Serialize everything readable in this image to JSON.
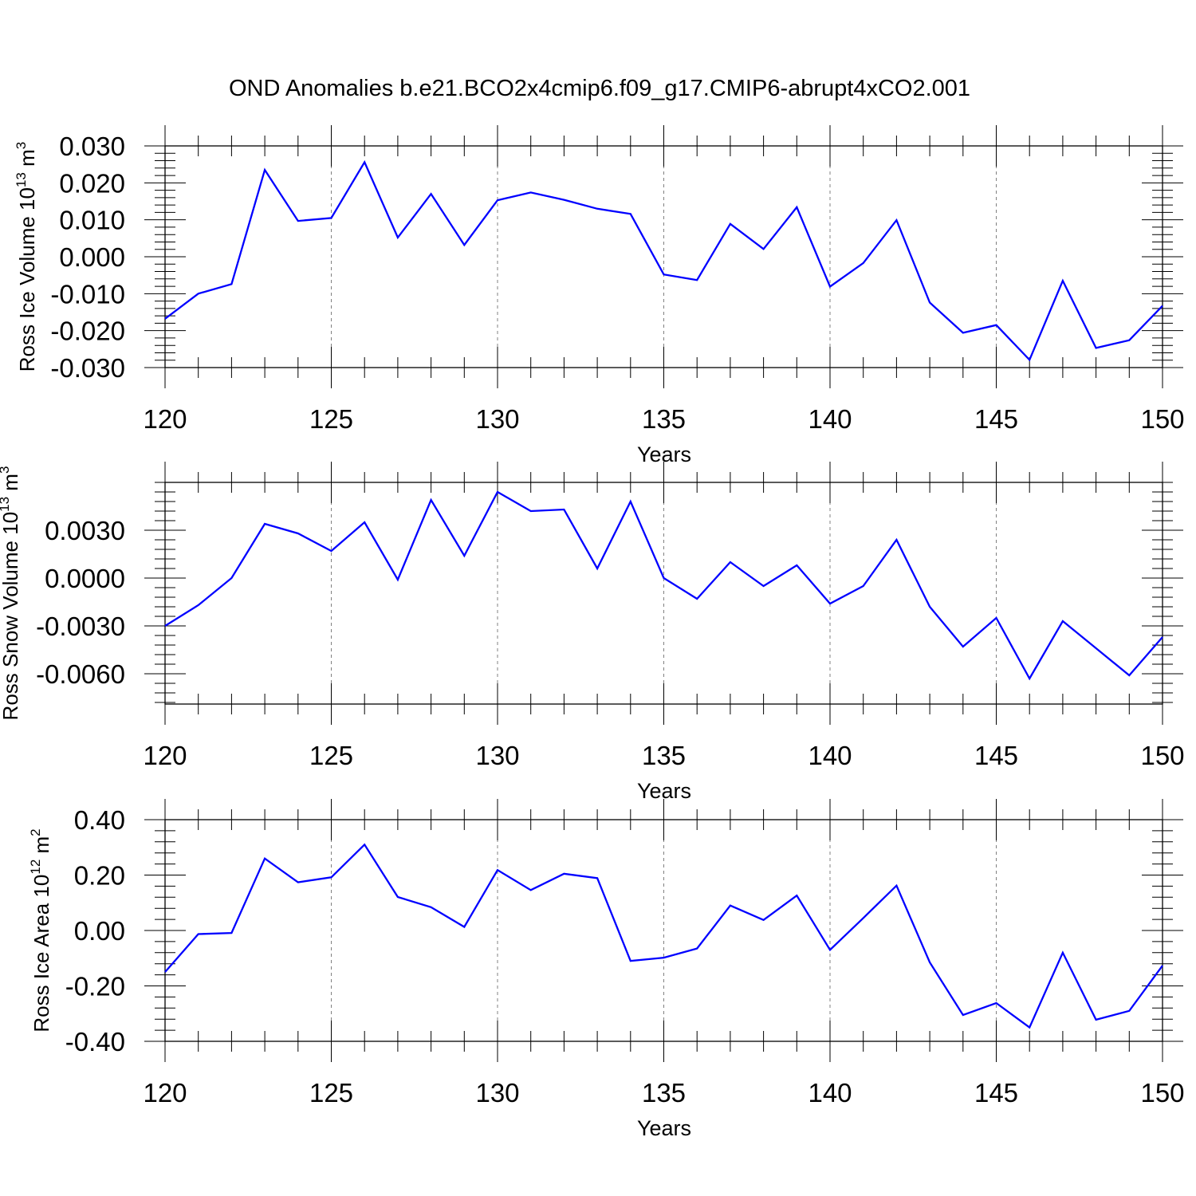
{
  "title": "OND Anomalies b.e21.BCO2x4cmip6.f09_g17.CMIP6-abrupt4xCO2.001",
  "colors": {
    "line": "#0000ff",
    "axis": "#000000",
    "grid": "#808080"
  },
  "chart_data": [
    {
      "type": "line",
      "xlabel": "Years",
      "ylabel": {
        "prefix": "Ross Ice Volume 10",
        "exp": "13",
        "unit": " m",
        "unit_exp": "3"
      },
      "xlim": [
        120,
        150
      ],
      "ylim": [
        -0.03,
        0.03
      ],
      "xticks": [
        120,
        125,
        130,
        135,
        140,
        145,
        150
      ],
      "xtick_labels": [
        "120",
        "125",
        "130",
        "135",
        "140",
        "145",
        "150"
      ],
      "yticks": [
        0.03,
        0.02,
        0.01,
        0.0,
        -0.01,
        -0.02,
        -0.03
      ],
      "ytick_labels": [
        "0.030",
        "0.020",
        "0.010",
        "0.000",
        "-0.010",
        "-0.020",
        "-0.030"
      ],
      "grid_x": [
        125,
        130,
        135,
        140,
        145
      ],
      "series": [
        {
          "name": "Ross Ice Volume",
          "x": [
            120,
            121,
            122,
            123,
            124,
            125,
            126,
            127,
            128,
            129,
            130,
            131,
            132,
            133,
            134,
            135,
            136,
            137,
            138,
            139,
            140,
            141,
            142,
            143,
            144,
            145,
            146,
            147,
            148,
            149,
            150
          ],
          "y": [
            -0.0168,
            -0.01,
            -0.0074,
            0.0235,
            0.0097,
            0.0105,
            0.0256,
            0.0052,
            0.017,
            0.0032,
            0.0153,
            0.0174,
            0.0154,
            0.013,
            0.0116,
            -0.0048,
            -0.0063,
            0.0089,
            0.0021,
            0.0134,
            -0.0081,
            -0.0017,
            0.0099,
            -0.0124,
            -0.0206,
            -0.0185,
            -0.0279,
            -0.0065,
            -0.0247,
            -0.0226,
            -0.0133
          ]
        }
      ]
    },
    {
      "type": "line",
      "xlabel": "Years",
      "ylabel": {
        "prefix": "Ross Snow Volume 10",
        "exp": "13",
        "unit": " m",
        "unit_exp": "3"
      },
      "xlim": [
        120,
        150
      ],
      "ylim": [
        -0.0079,
        0.006
      ],
      "xticks": [
        120,
        125,
        130,
        135,
        140,
        145,
        150
      ],
      "xtick_labels": [
        "120",
        "125",
        "130",
        "135",
        "140",
        "145",
        "150"
      ],
      "yticks": [
        0.003,
        0.0,
        -0.003,
        -0.006
      ],
      "ytick_labels": [
        "0.0030",
        "0.0000",
        "-0.0030",
        "-0.0060"
      ],
      "grid_x": [
        125,
        130,
        135,
        140,
        145
      ],
      "series": [
        {
          "name": "Ross Snow Volume",
          "x": [
            120,
            121,
            122,
            123,
            124,
            125,
            126,
            127,
            128,
            129,
            130,
            131,
            132,
            133,
            134,
            135,
            136,
            137,
            138,
            139,
            140,
            141,
            142,
            143,
            144,
            145,
            146,
            147,
            148,
            149,
            150
          ],
          "y": [
            -0.003,
            -0.0017,
            0.0,
            0.0034,
            0.0028,
            0.0017,
            0.0035,
            -0.0001,
            0.0049,
            0.0014,
            0.0054,
            0.0042,
            0.0043,
            0.0006,
            0.0048,
            0.0,
            -0.0013,
            0.001,
            -0.0005,
            0.0008,
            -0.0016,
            -0.0005,
            0.0024,
            -0.0018,
            -0.0043,
            -0.0025,
            -0.0063,
            -0.0027,
            -0.0044,
            -0.0061,
            -0.0037
          ]
        }
      ]
    },
    {
      "type": "line",
      "xlabel": "Years",
      "ylabel": {
        "prefix": "Ross Ice Area 10",
        "exp": "12",
        "unit": " m",
        "unit_exp": "2"
      },
      "xlim": [
        120,
        150
      ],
      "ylim": [
        -0.4,
        0.4
      ],
      "xticks": [
        120,
        125,
        130,
        135,
        140,
        145,
        150
      ],
      "xtick_labels": [
        "120",
        "125",
        "130",
        "135",
        "140",
        "145",
        "150"
      ],
      "yticks": [
        0.4,
        0.2,
        0.0,
        -0.2,
        -0.4
      ],
      "ytick_labels": [
        "0.40",
        "0.20",
        "0.00",
        "-0.20",
        "-0.40"
      ],
      "grid_x": [
        125,
        130,
        135,
        140,
        145
      ],
      "series": [
        {
          "name": "Ross Ice Area",
          "x": [
            120,
            121,
            122,
            123,
            124,
            125,
            126,
            127,
            128,
            129,
            130,
            131,
            132,
            133,
            134,
            135,
            136,
            137,
            138,
            139,
            140,
            141,
            142,
            143,
            144,
            145,
            146,
            147,
            148,
            149,
            150
          ],
          "y": [
            -0.15,
            -0.013,
            -0.009,
            0.26,
            0.174,
            0.192,
            0.31,
            0.121,
            0.084,
            0.013,
            0.218,
            0.146,
            0.205,
            0.189,
            -0.11,
            -0.098,
            -0.065,
            0.09,
            0.038,
            0.126,
            -0.07,
            0.045,
            0.162,
            -0.115,
            -0.305,
            -0.262,
            -0.35,
            -0.08,
            -0.322,
            -0.29,
            -0.127
          ]
        }
      ]
    }
  ]
}
